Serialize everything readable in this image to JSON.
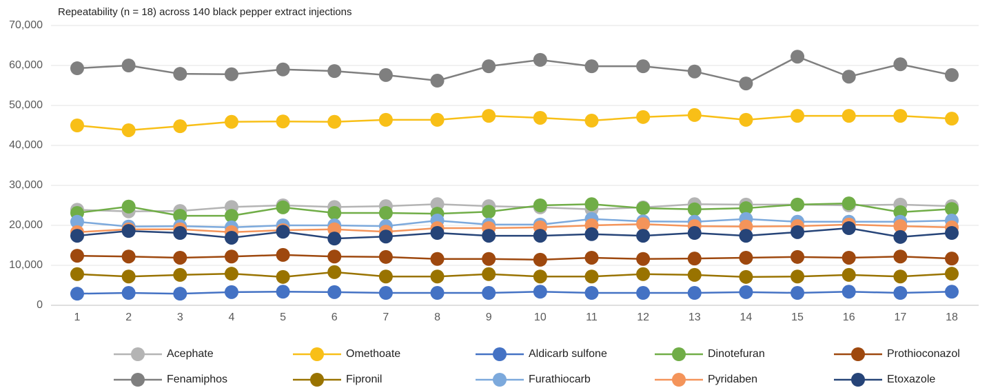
{
  "chart_data": {
    "type": "line",
    "title": "Repeatability (n = 18) across 140 black pepper extract injections",
    "categories": [
      "1",
      "2",
      "3",
      "4",
      "5",
      "6",
      "7",
      "8",
      "9",
      "10",
      "11",
      "12",
      "13",
      "14",
      "15",
      "16",
      "17",
      "18"
    ],
    "ylim": [
      0,
      70000
    ],
    "yticks": [
      0,
      {
        "value": 10000,
        "label": "10,000"
      },
      {
        "value": 20000,
        "label": "20,000"
      },
      {
        "value": 30000,
        "label": "30,000"
      },
      {
        "value": 40000,
        "label": "40,000"
      },
      {
        "value": 50000,
        "label": "50,000"
      },
      {
        "value": 60000,
        "label": "60,000"
      },
      {
        "value": 70000,
        "label": "70,000"
      }
    ],
    "grid": true,
    "legend": "bottom",
    "series": [
      {
        "name": "Acephate",
        "color": "#b4b4b4",
        "values": [
          23900,
          23500,
          23600,
          24600,
          25000,
          24600,
          24800,
          25300,
          24800,
          24500,
          24000,
          24500,
          25300,
          25200,
          25200,
          25000,
          25200,
          24800
        ]
      },
      {
        "name": "Omethoate",
        "color": "#f8bf17",
        "values": [
          45000,
          43800,
          44800,
          45900,
          46000,
          45900,
          46400,
          46400,
          47400,
          46900,
          46200,
          47100,
          47600,
          46400,
          47400,
          47400,
          47400,
          46700
        ]
      },
      {
        "name": "Aldicarb sulfone",
        "color": "#4472c4",
        "values": [
          2900,
          3100,
          2900,
          3300,
          3400,
          3300,
          3100,
          3100,
          3100,
          3400,
          3100,
          3100,
          3100,
          3300,
          3100,
          3400,
          3100,
          3400
        ]
      },
      {
        "name": "Dinotefuran",
        "color": "#70ad47",
        "values": [
          23100,
          24700,
          22400,
          22400,
          24500,
          23100,
          23100,
          22900,
          23400,
          25000,
          25300,
          24300,
          24000,
          24300,
          25200,
          25500,
          23300,
          24100
        ]
      },
      {
        "name": "Prothioconazol",
        "color": "#9e480e",
        "values": [
          12400,
          12200,
          11900,
          12200,
          12600,
          12200,
          12100,
          11600,
          11600,
          11400,
          11900,
          11600,
          11700,
          11900,
          12100,
          11900,
          12200,
          11700
        ]
      },
      {
        "name": "Fenamiphos",
        "color": "#7f7f7f",
        "values": [
          59300,
          60000,
          57900,
          57800,
          59000,
          58600,
          57600,
          56200,
          59800,
          61400,
          59800,
          59800,
          58500,
          55500,
          62200,
          57200,
          60300,
          57600
        ]
      },
      {
        "name": "Fipronil",
        "color": "#997300",
        "values": [
          7800,
          7200,
          7600,
          7900,
          7100,
          8300,
          7200,
          7200,
          7800,
          7200,
          7200,
          7800,
          7600,
          7100,
          7200,
          7600,
          7200,
          7900
        ]
      },
      {
        "name": "Furathiocarb",
        "color": "#7ca9dc",
        "values": [
          20900,
          19700,
          19800,
          19500,
          20000,
          20000,
          19800,
          21200,
          20200,
          20200,
          21600,
          21000,
          20900,
          21600,
          20900,
          20900,
          20900,
          21200
        ]
      },
      {
        "name": "Pyridaben",
        "color": "#f4945a",
        "values": [
          18300,
          19000,
          19000,
          18300,
          18800,
          19000,
          18400,
          19300,
          19300,
          19500,
          20000,
          20300,
          19800,
          19700,
          19800,
          20200,
          19800,
          19500
        ]
      },
      {
        "name": "Etoxazole",
        "color": "#264478",
        "values": [
          17400,
          18600,
          18100,
          16900,
          18400,
          16700,
          17200,
          18100,
          17400,
          17400,
          17800,
          17400,
          18100,
          17400,
          18300,
          19300,
          17100,
          18100
        ]
      }
    ]
  }
}
